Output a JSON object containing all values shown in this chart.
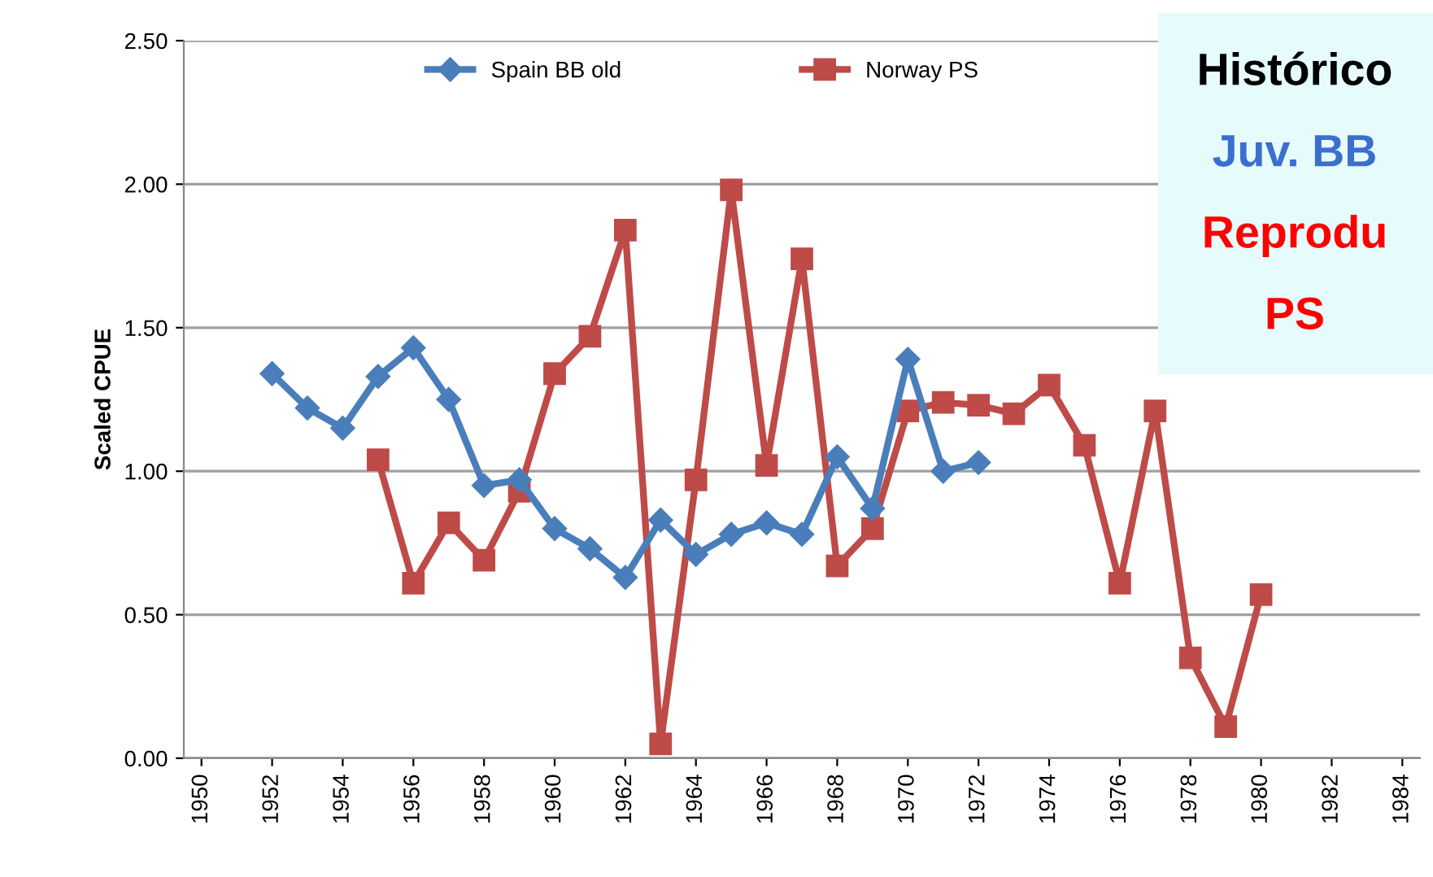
{
  "chart_data": {
    "type": "line",
    "ylabel": "Scaled CPUE",
    "xlim": [
      1949.5,
      1984.5
    ],
    "xticks": [
      1950,
      1952,
      1954,
      1956,
      1958,
      1960,
      1962,
      1964,
      1966,
      1968,
      1970,
      1972,
      1974,
      1976,
      1978,
      1980,
      1982,
      1984
    ],
    "ylim": [
      0,
      2.5
    ],
    "yticks": [
      {
        "value": 0,
        "label": "0.00"
      },
      {
        "value": 0.5,
        "label": "0.50"
      },
      {
        "value": 1,
        "label": "1.00"
      },
      {
        "value": 1.5,
        "label": "1.50"
      },
      {
        "value": 2,
        "label": "2.00"
      },
      {
        "value": 2.5,
        "label": "2.50"
      }
    ],
    "grid": "y",
    "legend": "top",
    "line_style": "solid",
    "series": [
      {
        "name": "Spain BB old",
        "color": "#4a7ebb",
        "marker": "diamond",
        "x": [
          1952,
          1953,
          1954,
          1955,
          1956,
          1957,
          1958,
          1959,
          1960,
          1961,
          1962,
          1963,
          1964,
          1965,
          1966,
          1967,
          1968,
          1969,
          1970,
          1971,
          1972
        ],
        "values": [
          1.34,
          1.22,
          1.15,
          1.33,
          1.43,
          1.25,
          0.95,
          0.97,
          0.8,
          0.73,
          0.63,
          0.83,
          0.71,
          0.78,
          0.82,
          0.78,
          1.05,
          0.87,
          1.39,
          1.0,
          1.03
        ]
      },
      {
        "name": "Norway PS",
        "color": "#be4b48",
        "marker": "square",
        "x": [
          1955,
          1956,
          1957,
          1958,
          1959,
          1960,
          1961,
          1962,
          1963,
          1964,
          1965,
          1966,
          1967,
          1968,
          1969,
          1970,
          1971,
          1972,
          1973,
          1974,
          1975,
          1976,
          1977,
          1978,
          1979,
          1980
        ],
        "values": [
          1.04,
          0.61,
          0.82,
          0.69,
          0.93,
          1.34,
          1.47,
          1.84,
          0.05,
          0.97,
          1.98,
          1.02,
          1.74,
          0.67,
          0.8,
          1.21,
          1.24,
          1.23,
          1.2,
          1.3,
          1.09,
          0.61,
          1.21,
          0.35,
          0.11,
          0.57
        ]
      }
    ],
    "annotations": [
      "Histórico",
      "Juv. BB",
      "Reprodu",
      "PS"
    ]
  }
}
